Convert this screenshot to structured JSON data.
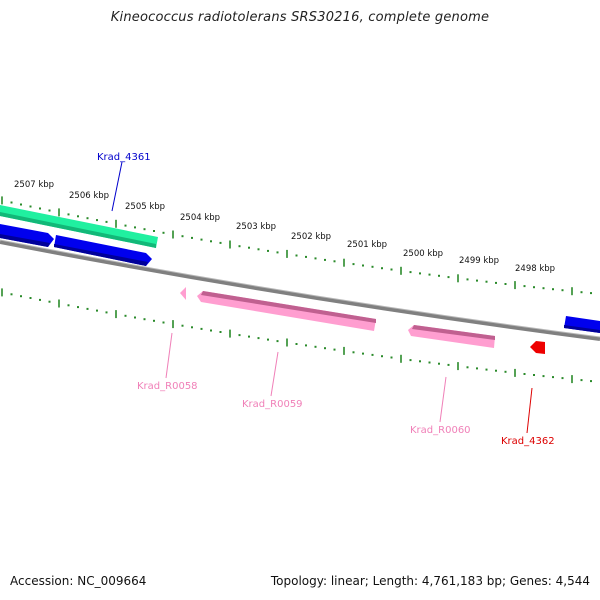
{
  "title": "Kineococcus radiotolerans SRS30216, complete genome",
  "footer": {
    "accession": "Accession: NC_009664",
    "summary": "Topology: linear; Length: 4,761,183 bp; Genes: 4,544"
  },
  "colors": {
    "backbone": "#808080",
    "ticks": "#2a8a2a",
    "cds": "#0000ee",
    "rrna": "#20f0a0",
    "pink_feature": "#ff9ed0",
    "selected": "#ee0000",
    "label_blue": "#0000cc",
    "label_pink": "#f080b8",
    "label_red": "#dd0000"
  },
  "scale": {
    "labels": [
      "2507 kbp",
      "2506 kbp",
      "2505 kbp",
      "2504 kbp",
      "2503 kbp",
      "2502 kbp",
      "2501 kbp",
      "2500 kbp",
      "2499 kbp",
      "2498 kbp"
    ]
  },
  "gene_labels": [
    {
      "id": "krad4361",
      "text": "Krad_4361",
      "color": "label_blue"
    },
    {
      "id": "kradr0058",
      "text": "Krad_R0058",
      "color": "label_pink"
    },
    {
      "id": "kradr0059",
      "text": "Krad_R0059",
      "color": "label_pink"
    },
    {
      "id": "kradr0060",
      "text": "Krad_R0060",
      "color": "label_pink"
    },
    {
      "id": "krad4362",
      "text": "Krad_4362",
      "color": "label_red"
    }
  ]
}
